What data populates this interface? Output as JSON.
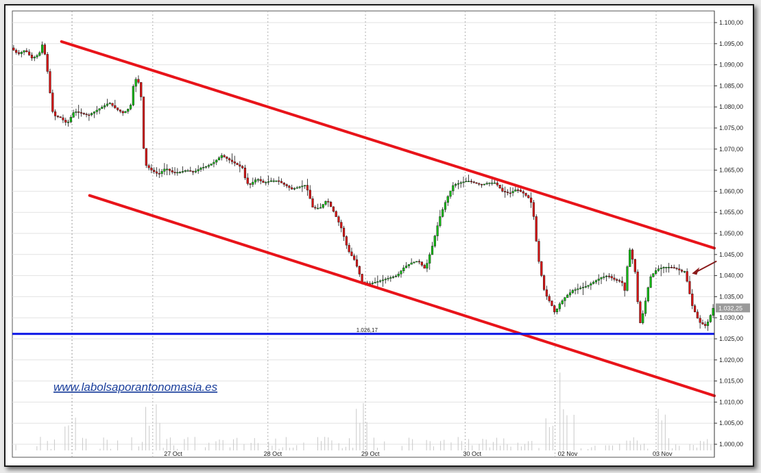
{
  "watermark": "www.labolsaporantonomasia.es",
  "chart_data": {
    "type": "candlestick",
    "instrument_note": "",
    "y_axis": {
      "min": 1.0,
      "max": 1.1,
      "ticks": [
        "1.100,00",
        "1.095,00",
        "1.090,00",
        "1.085,00",
        "1.080,00",
        "1.075,00",
        "1.070,00",
        "1.065,00",
        "1.060,00",
        "1.055,00",
        "1.050,00",
        "1.045,00",
        "1.040,00",
        "1.035,00",
        "1.030,00",
        "1.025,00",
        "1.020,00",
        "1.015,00",
        "1.010,00",
        "1.005,00",
        "1.000,00"
      ],
      "side": "right",
      "grid": true
    },
    "x_axis": {
      "tick_labels": [
        "27 Oct",
        "28 Oct",
        "29 Oct",
        "30 Oct",
        "02 Nov",
        "03 Nov"
      ],
      "grid": "dotted"
    },
    "last_price_label": "1.032,25",
    "last_price": 1.03225,
    "support": {
      "label": "1.026,17",
      "value": 1.02617,
      "color": "#0a14e6"
    },
    "channel_lines": [
      {
        "name": "upper",
        "color": "#e8141a",
        "from": {
          "t": 0.07,
          "v": 1.0955
        },
        "to": {
          "t": 1.0,
          "v": 1.0465
        }
      },
      {
        "name": "lower",
        "color": "#e8141a",
        "from": {
          "t": 0.11,
          "v": 1.059
        },
        "to": {
          "t": 1.0,
          "v": 1.0115
        }
      }
    ],
    "annotation_arrow": {
      "color": "#8b1a1a",
      "points_to": {
        "t": 0.968,
        "v": 1.0405
      }
    },
    "price_path": [
      [
        0.0,
        1.094
      ],
      [
        0.01,
        1.0925
      ],
      [
        0.02,
        1.0935
      ],
      [
        0.03,
        1.0915
      ],
      [
        0.04,
        1.0925
      ],
      [
        0.045,
        1.095
      ],
      [
        0.05,
        1.091
      ],
      [
        0.055,
        1.084
      ],
      [
        0.06,
        1.078
      ],
      [
        0.07,
        1.0775
      ],
      [
        0.08,
        1.076
      ],
      [
        0.09,
        1.079
      ],
      [
        0.1,
        1.0785
      ],
      [
        0.11,
        1.078
      ],
      [
        0.12,
        1.079
      ],
      [
        0.13,
        1.08
      ],
      [
        0.14,
        1.081
      ],
      [
        0.15,
        1.0795
      ],
      [
        0.16,
        1.0785
      ],
      [
        0.17,
        1.08
      ],
      [
        0.175,
        1.086
      ],
      [
        0.18,
        1.087
      ],
      [
        0.185,
        1.083
      ],
      [
        0.19,
        1.0665
      ],
      [
        0.2,
        1.065
      ],
      [
        0.21,
        1.064
      ],
      [
        0.22,
        1.0655
      ],
      [
        0.23,
        1.0645
      ],
      [
        0.24,
        1.0645
      ],
      [
        0.25,
        1.065
      ],
      [
        0.26,
        1.0645
      ],
      [
        0.27,
        1.0655
      ],
      [
        0.28,
        1.066
      ],
      [
        0.29,
        1.067
      ],
      [
        0.3,
        1.0685
      ],
      [
        0.31,
        1.0675
      ],
      [
        0.32,
        1.0665
      ],
      [
        0.33,
        1.0655
      ],
      [
        0.335,
        1.062
      ],
      [
        0.34,
        1.0615
      ],
      [
        0.35,
        1.063
      ],
      [
        0.36,
        1.062
      ],
      [
        0.37,
        1.0625
      ],
      [
        0.38,
        1.0625
      ],
      [
        0.39,
        1.0615
      ],
      [
        0.4,
        1.0605
      ],
      [
        0.41,
        1.061
      ],
      [
        0.42,
        1.0615
      ],
      [
        0.43,
        1.056
      ],
      [
        0.44,
        1.056
      ],
      [
        0.45,
        1.058
      ],
      [
        0.46,
        1.055
      ],
      [
        0.47,
        1.0515
      ],
      [
        0.48,
        1.046
      ],
      [
        0.49,
        1.0435
      ],
      [
        0.5,
        1.0385
      ],
      [
        0.51,
        1.038
      ],
      [
        0.52,
        1.0385
      ],
      [
        0.53,
        1.039
      ],
      [
        0.54,
        1.0395
      ],
      [
        0.55,
        1.04
      ],
      [
        0.56,
        1.042
      ],
      [
        0.57,
        1.043
      ],
      [
        0.58,
        1.0435
      ],
      [
        0.59,
        1.0415
      ],
      [
        0.6,
        1.047
      ],
      [
        0.61,
        1.0535
      ],
      [
        0.62,
        1.058
      ],
      [
        0.63,
        1.0615
      ],
      [
        0.64,
        1.062
      ],
      [
        0.65,
        1.0625
      ],
      [
        0.66,
        1.062
      ],
      [
        0.67,
        1.0615
      ],
      [
        0.68,
        1.062
      ],
      [
        0.69,
        1.062
      ],
      [
        0.7,
        1.06
      ],
      [
        0.71,
        1.0595
      ],
      [
        0.72,
        1.0605
      ],
      [
        0.73,
        1.0595
      ],
      [
        0.74,
        1.058
      ],
      [
        0.745,
        1.0535
      ],
      [
        0.75,
        1.045
      ],
      [
        0.76,
        1.036
      ],
      [
        0.77,
        1.033
      ],
      [
        0.775,
        1.031
      ],
      [
        0.78,
        1.033
      ],
      [
        0.79,
        1.035
      ],
      [
        0.8,
        1.0365
      ],
      [
        0.81,
        1.037
      ],
      [
        0.82,
        1.0375
      ],
      [
        0.83,
        1.0385
      ],
      [
        0.84,
        1.0395
      ],
      [
        0.85,
        1.04
      ],
      [
        0.86,
        1.039
      ],
      [
        0.87,
        1.0385
      ],
      [
        0.875,
        1.036
      ],
      [
        0.88,
        1.047
      ],
      [
        0.885,
        1.044
      ],
      [
        0.89,
        1.04
      ],
      [
        0.895,
        1.028
      ],
      [
        0.9,
        1.031
      ],
      [
        0.905,
        1.035
      ],
      [
        0.91,
        1.0395
      ],
      [
        0.92,
        1.0415
      ],
      [
        0.93,
        1.042
      ],
      [
        0.94,
        1.042
      ],
      [
        0.95,
        1.0415
      ],
      [
        0.955,
        1.041
      ],
      [
        0.96,
        1.041
      ],
      [
        0.965,
        1.037
      ],
      [
        0.97,
        1.033
      ],
      [
        0.98,
        1.029
      ],
      [
        0.99,
        1.028
      ],
      [
        0.995,
        1.03
      ],
      [
        1.0,
        1.03225
      ]
    ]
  }
}
